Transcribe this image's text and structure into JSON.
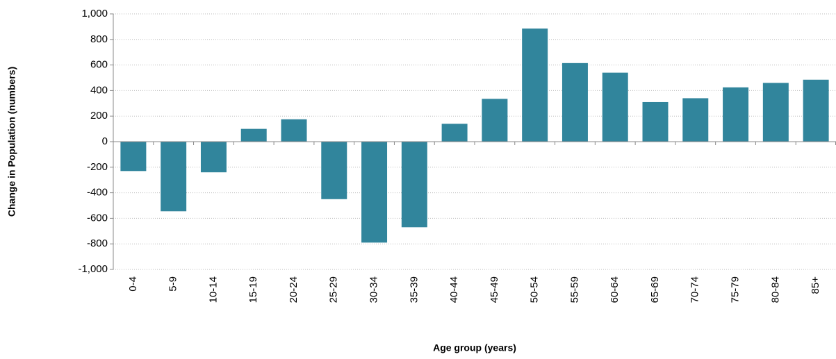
{
  "chart_data": {
    "type": "bar",
    "x_label": "Age group (years)",
    "y_label": "Change in Population  (numbers)",
    "categories": [
      "0-4",
      "5-9",
      "10-14",
      "15-19",
      "20-24",
      "25-29",
      "30-34",
      "35-39",
      "40-44",
      "45-49",
      "50-54",
      "55-59",
      "60-64",
      "65-69",
      "70-74",
      "75-79",
      "80-84",
      "85+"
    ],
    "values": [
      -230,
      -545,
      -240,
      100,
      175,
      -450,
      -790,
      -670,
      140,
      335,
      885,
      615,
      540,
      310,
      340,
      425,
      460,
      485
    ],
    "color": "#31859c",
    "ylim": [
      -1000,
      1000
    ],
    "yticks": [
      {
        "value": -1000,
        "label": "-1,000"
      },
      -800,
      -600,
      -400,
      -200,
      0,
      200,
      400,
      600,
      800,
      {
        "value": 1000,
        "label": "1,000"
      }
    ],
    "grid": true
  }
}
